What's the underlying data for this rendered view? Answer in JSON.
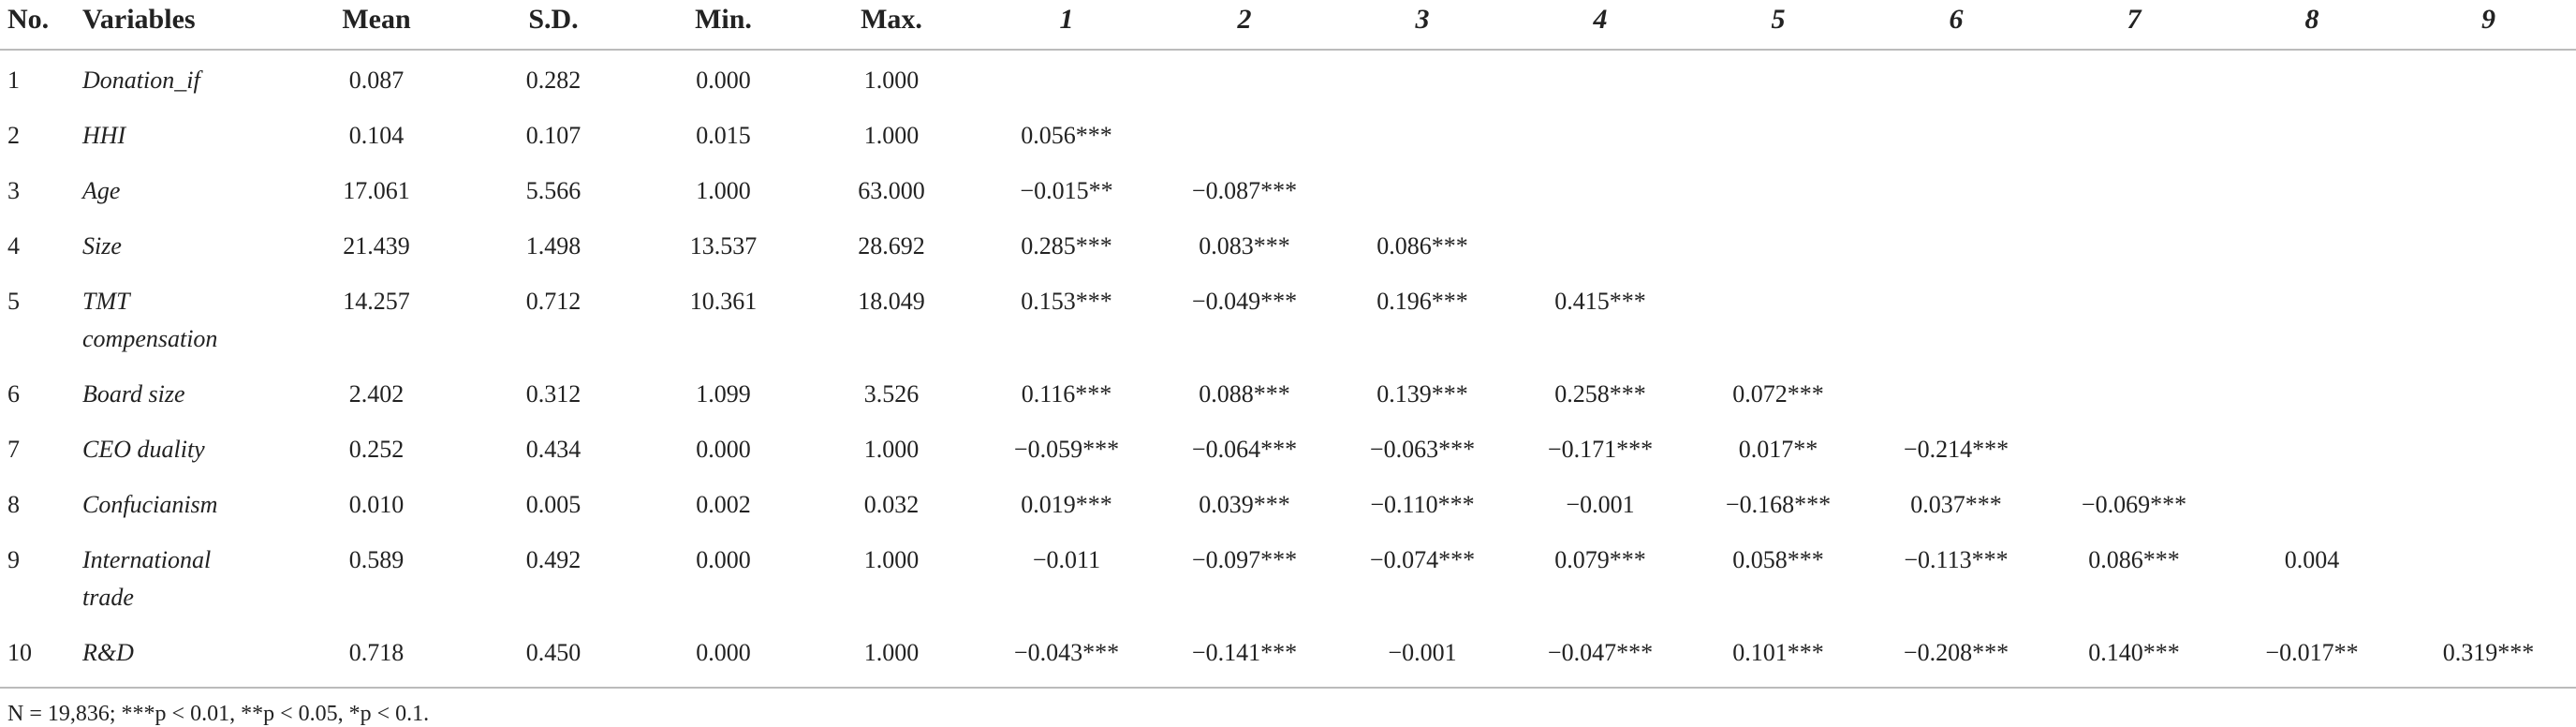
{
  "table": {
    "header": [
      "No.",
      "Variables",
      "Mean",
      "S.D.",
      "Min.",
      "Max.",
      "1",
      "2",
      "3",
      "4",
      "5",
      "6",
      "7",
      "8",
      "9"
    ],
    "rows": [
      {
        "no": "1",
        "variable": "Donation_if",
        "mean": "0.087",
        "sd": "0.282",
        "min": "0.000",
        "max": "1.000",
        "correlations": []
      },
      {
        "no": "2",
        "variable": "HHI",
        "mean": "0.104",
        "sd": "0.107",
        "min": "0.015",
        "max": "1.000",
        "correlations": [
          "0.056***"
        ]
      },
      {
        "no": "3",
        "variable": "Age",
        "mean": "17.061",
        "sd": "5.566",
        "min": "1.000",
        "max": "63.000",
        "correlations": [
          "−0.015**",
          "−0.087***"
        ]
      },
      {
        "no": "4",
        "variable": "Size",
        "mean": "21.439",
        "sd": "1.498",
        "min": "13.537",
        "max": "28.692",
        "correlations": [
          "0.285***",
          "0.083***",
          "0.086***"
        ]
      },
      {
        "no": "5",
        "variable": "TMT compensation",
        "mean": "14.257",
        "sd": "0.712",
        "min": "10.361",
        "max": "18.049",
        "correlations": [
          "0.153***",
          "−0.049***",
          "0.196***",
          "0.415***"
        ]
      },
      {
        "no": "6",
        "variable": "Board size",
        "mean": "2.402",
        "sd": "0.312",
        "min": "1.099",
        "max": "3.526",
        "correlations": [
          "0.116***",
          "0.088***",
          "0.139***",
          "0.258***",
          "0.072***"
        ]
      },
      {
        "no": "7",
        "variable": "CEO duality",
        "mean": "0.252",
        "sd": "0.434",
        "min": "0.000",
        "max": "1.000",
        "correlations": [
          "−0.059***",
          "−0.064***",
          "−0.063***",
          "−0.171***",
          "0.017**",
          "−0.214***"
        ]
      },
      {
        "no": "8",
        "variable": "Confucianism",
        "mean": "0.010",
        "sd": "0.005",
        "min": "0.002",
        "max": "0.032",
        "correlations": [
          "0.019***",
          "0.039***",
          "−0.110***",
          "−0.001",
          "−0.168***",
          "0.037***",
          "−0.069***"
        ]
      },
      {
        "no": "9",
        "variable": "International trade",
        "mean": "0.589",
        "sd": "0.492",
        "min": "0.000",
        "max": "1.000",
        "correlations": [
          "−0.011",
          "−0.097***",
          "−0.074***",
          "0.079***",
          "0.058***",
          "−0.113***",
          "0.086***",
          "0.004"
        ]
      },
      {
        "no": "10",
        "variable": "R&D",
        "mean": "0.718",
        "sd": "0.450",
        "min": "0.000",
        "max": "1.000",
        "correlations": [
          "−0.043***",
          "−0.141***",
          "−0.001",
          "−0.047***",
          "0.101***",
          "−0.208***",
          "0.140***",
          "−0.017**",
          "0.319***"
        ]
      }
    ],
    "footnote": "N = 19,836; ***p < 0.01, **p < 0.05, *p < 0.1."
  }
}
